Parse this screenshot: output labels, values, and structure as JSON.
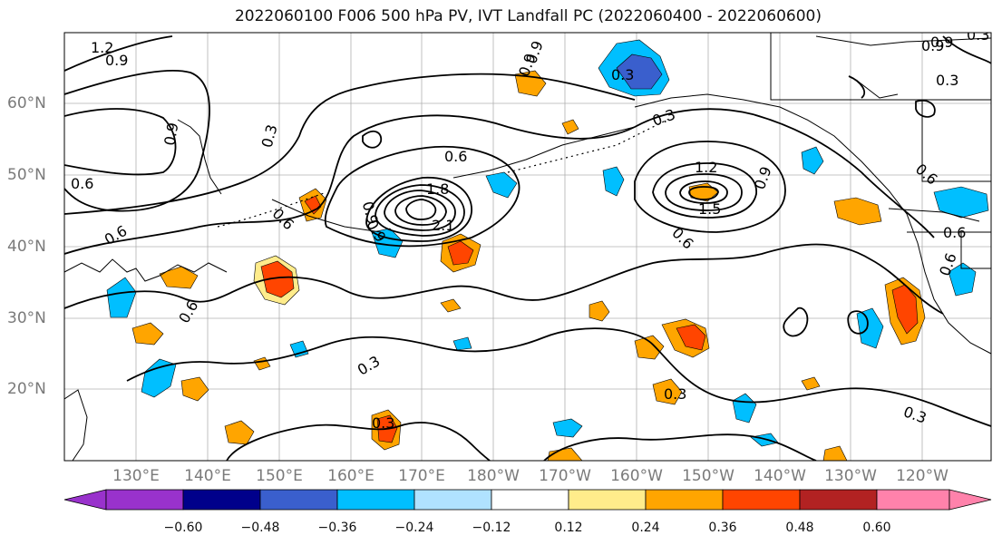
{
  "title": "2022060100 F006 500 hPa PV, IVT Landfall PC (2022060400 - 2022060600)",
  "latitude_labels": [
    "60°N",
    "50°N",
    "40°N",
    "30°N",
    "20°N"
  ],
  "longitude_labels": [
    "130°E",
    "140°E",
    "150°E",
    "160°E",
    "170°E",
    "180°W",
    "170°W",
    "160°W",
    "150°W",
    "140°W",
    "130°W",
    "120°W"
  ],
  "colorbar": {
    "tick_labels": [
      "−0.60",
      "−0.48",
      "−0.36",
      "−0.24",
      "−0.12",
      "0.12",
      "0.24",
      "0.36",
      "0.48",
      "0.60"
    ],
    "colors": [
      "#9932cc",
      "#00008b",
      "#3a5fcd",
      "#00bfff",
      "#b0e2ff",
      "#ffffff",
      "#ffec8b",
      "#ffa500",
      "#ff4500",
      "#b22222",
      "#ff82ab"
    ]
  },
  "contour_labels": [
    "1.2",
    "0.9",
    "0.9",
    "0.3",
    "0.6",
    "0.6",
    "0.6",
    "0.6",
    "0.9",
    "1.2",
    "1.5",
    "0.9",
    "0.6",
    "0.3",
    "0.3",
    "0.3",
    "0.3",
    "0.6",
    "0.6",
    "0.9",
    "0.9",
    "0.3",
    "1.8",
    "2.1",
    "0.9",
    "0.3",
    "0.9",
    "0.6",
    "0.6",
    "0.3",
    "0.3",
    "0.9"
  ]
}
